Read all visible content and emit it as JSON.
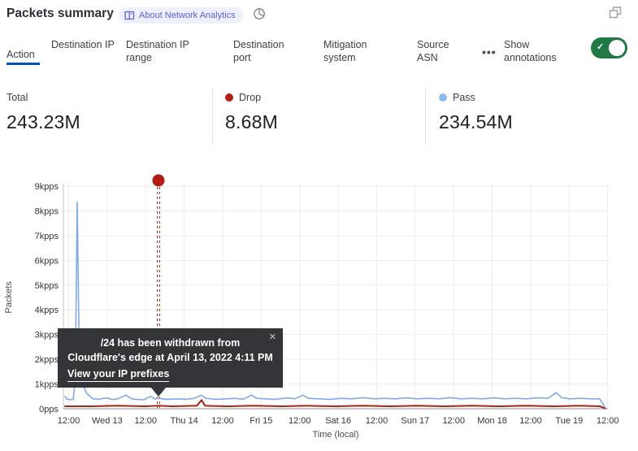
{
  "header": {
    "title": "Packets summary",
    "badge_label": "About Network Analytics"
  },
  "tabs": {
    "items": [
      {
        "label": "Action",
        "active": true
      },
      {
        "label": "Destination IP",
        "active": false
      },
      {
        "label": "Destination IP range",
        "active": false
      },
      {
        "label": "Destination port",
        "active": false
      },
      {
        "label": "Mitigation system",
        "active": false
      },
      {
        "label": "Source ASN",
        "active": false
      }
    ],
    "more_label": "•••",
    "show_annotations_label": "Show annotations",
    "toggle_state": "on",
    "toggle_color": "#217a46",
    "active_underline_color": "#0051c3"
  },
  "stats": [
    {
      "label": "Total",
      "value": "243.23M",
      "color": null
    },
    {
      "label": "Drop",
      "value": "8.68M",
      "color": "#b21d15"
    },
    {
      "label": "Pass",
      "value": "234.54M",
      "color": "#8db9ea"
    }
  ],
  "tooltip": {
    "line1": "/24 has been withdrawn from",
    "line2": "Cloudflare's edge at April 13, 2022 4:11 PM",
    "link_label": "View your IP prefixes",
    "close": "✕"
  },
  "chart_data": {
    "type": "line",
    "title": "Packets summary",
    "ylabel": "Packets",
    "xlabel": "Time (local)",
    "y_unit": "kpps",
    "ylim": [
      0,
      9
    ],
    "grid": true,
    "y_ticks": [
      "0pps",
      "1kpps",
      "2kpps",
      "3kpps",
      "4kpps",
      "5kpps",
      "6kpps",
      "7kpps",
      "8kpps",
      "9kpps"
    ],
    "x_ticks": [
      "12:00",
      "Wed 13",
      "12:00",
      "Thu 14",
      "12:00",
      "Fri 15",
      "12:00",
      "Sat 16",
      "12:00",
      "Sun 17",
      "12:00",
      "Mon 18",
      "12:00",
      "Tue 19",
      "12:00"
    ],
    "series": [
      {
        "name": "Pass",
        "color": "#7fabe3",
        "width": 1.6,
        "points": [
          [
            0.003,
            0.5
          ],
          [
            0.006,
            0.4
          ],
          [
            0.012,
            0.36
          ],
          [
            0.018,
            0.38
          ],
          [
            0.022,
            1.2
          ],
          [
            0.0254,
            8.35
          ],
          [
            0.029,
            2.5
          ],
          [
            0.032,
            1.4
          ],
          [
            0.037,
            0.9
          ],
          [
            0.043,
            0.62
          ],
          [
            0.05,
            0.48
          ],
          [
            0.055,
            0.4
          ],
          [
            0.065,
            0.38
          ],
          [
            0.079,
            0.44
          ],
          [
            0.09,
            0.37
          ],
          [
            0.1,
            0.4
          ],
          [
            0.115,
            0.55
          ],
          [
            0.125,
            0.4
          ],
          [
            0.135,
            0.38
          ],
          [
            0.148,
            0.36
          ],
          [
            0.16,
            0.5
          ],
          [
            0.168,
            0.4
          ],
          [
            0.175,
            0.42
          ],
          [
            0.19,
            0.38
          ],
          [
            0.21,
            0.4
          ],
          [
            0.225,
            0.38
          ],
          [
            0.24,
            0.42
          ],
          [
            0.253,
            0.55
          ],
          [
            0.262,
            0.42
          ],
          [
            0.28,
            0.38
          ],
          [
            0.3,
            0.4
          ],
          [
            0.315,
            0.42
          ],
          [
            0.33,
            0.38
          ],
          [
            0.345,
            0.55
          ],
          [
            0.355,
            0.42
          ],
          [
            0.37,
            0.4
          ],
          [
            0.39,
            0.38
          ],
          [
            0.41,
            0.44
          ],
          [
            0.425,
            0.4
          ],
          [
            0.44,
            0.55
          ],
          [
            0.45,
            0.42
          ],
          [
            0.47,
            0.4
          ],
          [
            0.49,
            0.38
          ],
          [
            0.51,
            0.42
          ],
          [
            0.53,
            0.4
          ],
          [
            0.55,
            0.45
          ],
          [
            0.57,
            0.4
          ],
          [
            0.59,
            0.42
          ],
          [
            0.61,
            0.4
          ],
          [
            0.63,
            0.44
          ],
          [
            0.65,
            0.4
          ],
          [
            0.67,
            0.42
          ],
          [
            0.69,
            0.4
          ],
          [
            0.71,
            0.45
          ],
          [
            0.73,
            0.4
          ],
          [
            0.75,
            0.42
          ],
          [
            0.77,
            0.4
          ],
          [
            0.79,
            0.44
          ],
          [
            0.81,
            0.4
          ],
          [
            0.83,
            0.42
          ],
          [
            0.85,
            0.4
          ],
          [
            0.87,
            0.44
          ],
          [
            0.89,
            0.42
          ],
          [
            0.905,
            0.65
          ],
          [
            0.915,
            0.45
          ],
          [
            0.93,
            0.4
          ],
          [
            0.95,
            0.42
          ],
          [
            0.97,
            0.4
          ],
          [
            0.985,
            0.4
          ],
          [
            0.995,
            0.05
          ]
        ]
      },
      {
        "name": "Drop",
        "color": "#a8241d",
        "width": 2,
        "points": [
          [
            0.003,
            0.1
          ],
          [
            0.05,
            0.1
          ],
          [
            0.1,
            0.12
          ],
          [
            0.15,
            0.1
          ],
          [
            0.175,
            0.12
          ],
          [
            0.2,
            0.1
          ],
          [
            0.245,
            0.12
          ],
          [
            0.2537,
            0.35
          ],
          [
            0.26,
            0.12
          ],
          [
            0.3,
            0.1
          ],
          [
            0.35,
            0.12
          ],
          [
            0.4,
            0.1
          ],
          [
            0.45,
            0.12
          ],
          [
            0.5,
            0.1
          ],
          [
            0.55,
            0.12
          ],
          [
            0.6,
            0.1
          ],
          [
            0.65,
            0.12
          ],
          [
            0.7,
            0.1
          ],
          [
            0.75,
            0.12
          ],
          [
            0.8,
            0.1
          ],
          [
            0.85,
            0.12
          ],
          [
            0.9,
            0.1
          ],
          [
            0.95,
            0.12
          ],
          [
            0.985,
            0.1
          ],
          [
            0.995,
            0.02
          ]
        ]
      }
    ],
    "annotation": {
      "x_fraction": 0.1746,
      "dot_color": "#b11a15",
      "line_color": "#9e211c",
      "label": "/24 has been withdrawn from Cloudflare's edge at April 13, 2022 4:11 PM"
    }
  }
}
